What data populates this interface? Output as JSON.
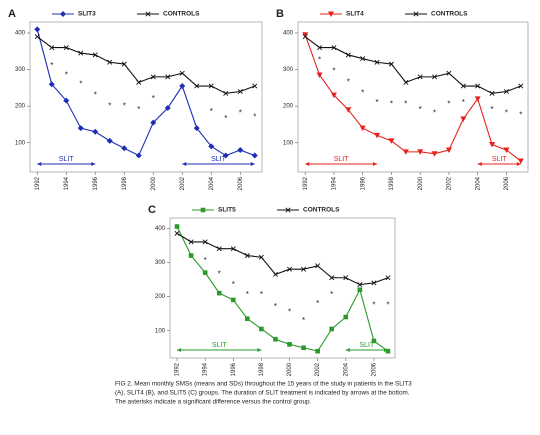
{
  "chart_data": [
    {
      "type": "line",
      "panel": "A",
      "x": [
        1992,
        1993,
        1994,
        1995,
        1996,
        1997,
        1998,
        1999,
        2000,
        2001,
        2002,
        2003,
        2004,
        2005,
        2006,
        2007
      ],
      "series": [
        {
          "name": "SLIT3",
          "color": "#1f2fb5",
          "marker": "diamond",
          "values": [
            410,
            260,
            215,
            140,
            130,
            105,
            85,
            65,
            155,
            195,
            255,
            140,
            90,
            65,
            80,
            65
          ]
        },
        {
          "name": "CONTROLS",
          "color": "#111111",
          "marker": "x",
          "values": [
            390,
            360,
            360,
            345,
            340,
            320,
            315,
            265,
            280,
            280,
            290,
            255,
            255,
            235,
            240,
            255
          ]
        }
      ],
      "significance": {
        "label": "*",
        "x": [
          1993,
          1994,
          1995,
          1996,
          1997,
          1998,
          1999,
          2000,
          2004,
          2005,
          2006,
          2007
        ],
        "y": [
          315,
          290,
          265,
          235,
          205,
          205,
          195,
          225,
          190,
          170,
          185,
          175
        ]
      },
      "treatment": {
        "label": "SLIT",
        "color": "#1f2fb5",
        "periods": [
          [
            1992,
            1996
          ],
          [
            2002,
            2007
          ]
        ]
      },
      "xlim": [
        1991.5,
        2007.5
      ],
      "xticks": [
        1992,
        1994,
        1996,
        1998,
        2000,
        2002,
        2004,
        2006
      ],
      "ylim": [
        20,
        430
      ],
      "yticks": [
        100,
        200,
        300,
        400
      ]
    },
    {
      "type": "line",
      "panel": "B",
      "x": [
        1992,
        1993,
        1994,
        1995,
        1996,
        1997,
        1998,
        1999,
        2000,
        2001,
        2002,
        2003,
        2004,
        2005,
        2006,
        2007
      ],
      "series": [
        {
          "name": "SLIT4",
          "color": "#e8211c",
          "marker": "triangle",
          "values": [
            395,
            285,
            230,
            190,
            140,
            120,
            105,
            75,
            75,
            70,
            80,
            165,
            220,
            95,
            80,
            50
          ]
        },
        {
          "name": "CONTROLS",
          "color": "#111111",
          "marker": "x",
          "values": [
            390,
            360,
            360,
            340,
            330,
            320,
            315,
            265,
            280,
            280,
            290,
            255,
            255,
            235,
            240,
            255
          ]
        }
      ],
      "significance": {
        "label": "*",
        "x": [
          1993,
          1994,
          1995,
          1996,
          1997,
          1998,
          1999,
          2000,
          2001,
          2002,
          2003,
          2005,
          2006,
          2007
        ],
        "y": [
          330,
          300,
          270,
          240,
          215,
          210,
          210,
          195,
          185,
          210,
          215,
          195,
          185,
          180
        ]
      },
      "treatment": {
        "label": "SLIT",
        "color": "#e8211c",
        "periods": [
          [
            1992,
            1997
          ],
          [
            2004,
            2007
          ]
        ]
      },
      "xlim": [
        1991.5,
        2007.5
      ],
      "xticks": [
        1992,
        1994,
        1996,
        1998,
        2000,
        2002,
        2004,
        2006
      ],
      "ylim": [
        20,
        430
      ],
      "yticks": [
        100,
        200,
        300,
        400
      ]
    },
    {
      "type": "line",
      "panel": "C",
      "x": [
        1992,
        1993,
        1994,
        1995,
        1996,
        1997,
        1998,
        1999,
        2000,
        2001,
        2002,
        2003,
        2004,
        2005,
        2006,
        2007
      ],
      "series": [
        {
          "name": "SLIT5",
          "color": "#2a9a2a",
          "marker": "square",
          "values": [
            405,
            320,
            270,
            210,
            190,
            135,
            105,
            75,
            60,
            50,
            40,
            105,
            140,
            220,
            70,
            40
          ]
        },
        {
          "name": "CONTROLS",
          "color": "#111111",
          "marker": "x",
          "values": [
            385,
            360,
            360,
            340,
            340,
            320,
            315,
            265,
            280,
            280,
            290,
            255,
            255,
            235,
            240,
            255
          ]
        }
      ],
      "significance": {
        "label": "*",
        "x": [
          1994,
          1995,
          1996,
          1997,
          1998,
          1999,
          2000,
          2001,
          2002,
          2003,
          2006,
          2007
        ],
        "y": [
          310,
          270,
          240,
          210,
          210,
          175,
          160,
          135,
          185,
          210,
          180,
          180
        ]
      },
      "treatment": {
        "label": "SLIT",
        "color": "#2a9a2a",
        "periods": [
          [
            1992,
            1998
          ],
          [
            2004,
            2007
          ]
        ]
      },
      "xlim": [
        1991.5,
        2007.5
      ],
      "xticks": [
        1992,
        1994,
        1996,
        1998,
        2000,
        2002,
        2004,
        2006
      ],
      "ylim": [
        20,
        430
      ],
      "yticks": [
        100,
        200,
        300,
        400
      ]
    }
  ],
  "caption": [
    "FIG 2. Mean monthly SMSs (means and SDs) throughout the 15 years of the study in patients in the SLIT3",
    "(A), SLIT4 (B), and SLIT5 (C) groups. The duration of SLIT treatment is indicated by arrows at the bottom.",
    "The asterisks indicate a significant difference versus the control group."
  ]
}
